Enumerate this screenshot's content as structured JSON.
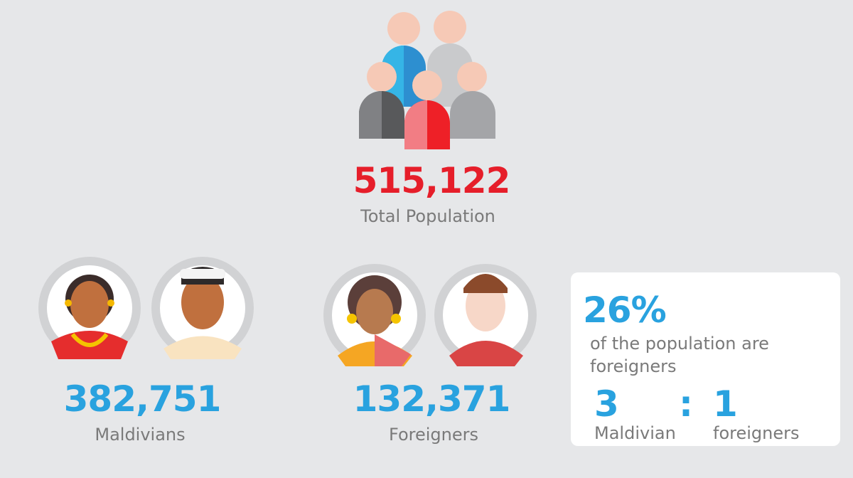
{
  "total": {
    "value": "515,122",
    "label": "Total Population"
  },
  "maldivians": {
    "value": "382,751",
    "label": "Maldivians"
  },
  "foreigners": {
    "value": "132,371",
    "label": "Foreigners"
  },
  "card": {
    "percent": "26%",
    "text": "of the population are foreigners",
    "ratio": {
      "left": "3",
      "separator": ":",
      "right": "1",
      "left_label": "Maldivian",
      "right_label": "foreigners"
    }
  }
}
